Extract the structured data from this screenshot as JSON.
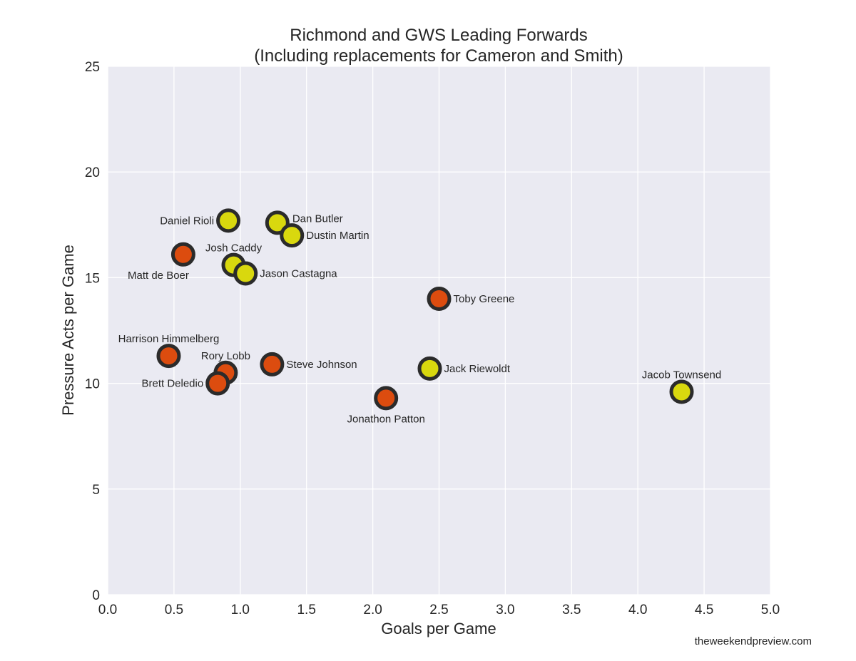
{
  "chart_data": {
    "type": "scatter",
    "title": [
      "Richmond and GWS Leading Forwards",
      "(Including replacements for Cameron and Smith)"
    ],
    "xlabel": "Goals per Game",
    "ylabel": "Pressure Acts per Game",
    "xlim": [
      0,
      5
    ],
    "ylim": [
      0,
      25
    ],
    "xticks": [
      0.0,
      0.5,
      1.0,
      1.5,
      2.0,
      2.5,
      3.0,
      3.5,
      4.0,
      4.5,
      5.0
    ],
    "xtick_labels": [
      "0.0",
      "0.5",
      "1.0",
      "1.5",
      "2.0",
      "2.5",
      "3.0",
      "3.5",
      "4.0",
      "4.5",
      "5.0"
    ],
    "yticks": [
      0,
      5,
      10,
      15,
      20,
      25
    ],
    "ytick_labels": [
      "0",
      "5",
      "10",
      "15",
      "20",
      "25"
    ],
    "grid": true,
    "credit": "theweekendpreview.com",
    "colors": {
      "background": "#eaeaf2",
      "grid": "#ffffff",
      "marker_edge": "#2b2b2b",
      "richmond": "#d9d80e",
      "gws": "#dc4c0f"
    },
    "points": [
      {
        "name": "Daniel Rioli",
        "x": 0.91,
        "y": 17.7,
        "team": "richmond",
        "label_pos": "left"
      },
      {
        "name": "Dan Butler",
        "x": 1.28,
        "y": 17.6,
        "team": "richmond",
        "label_pos": "upper-right"
      },
      {
        "name": "Dustin Martin",
        "x": 1.39,
        "y": 17.0,
        "team": "richmond",
        "label_pos": "right"
      },
      {
        "name": "Josh Caddy",
        "x": 0.95,
        "y": 15.6,
        "team": "richmond",
        "label_pos": "top"
      },
      {
        "name": "Jason Castagna",
        "x": 1.04,
        "y": 15.2,
        "team": "richmond",
        "label_pos": "right"
      },
      {
        "name": "Jack Riewoldt",
        "x": 2.43,
        "y": 10.7,
        "team": "richmond",
        "label_pos": "right"
      },
      {
        "name": "Jacob Townsend",
        "x": 4.33,
        "y": 9.6,
        "team": "richmond",
        "label_pos": "top"
      },
      {
        "name": "Matt de Boer",
        "x": 0.57,
        "y": 16.1,
        "team": "gws",
        "label_pos": "lower-left"
      },
      {
        "name": "Toby Greene",
        "x": 2.5,
        "y": 14.0,
        "team": "gws",
        "label_pos": "right"
      },
      {
        "name": "Harrison Himmelberg",
        "x": 0.46,
        "y": 11.3,
        "team": "gws",
        "label_pos": "top"
      },
      {
        "name": "Rory Lobb",
        "x": 0.89,
        "y": 10.5,
        "team": "gws",
        "label_pos": "top"
      },
      {
        "name": "Steve Johnson",
        "x": 1.24,
        "y": 10.9,
        "team": "gws",
        "label_pos": "right"
      },
      {
        "name": "Brett Deledio",
        "x": 0.83,
        "y": 10.0,
        "team": "gws",
        "label_pos": "left"
      },
      {
        "name": "Jonathon Patton",
        "x": 2.1,
        "y": 9.3,
        "team": "gws",
        "label_pos": "bottom"
      }
    ]
  }
}
